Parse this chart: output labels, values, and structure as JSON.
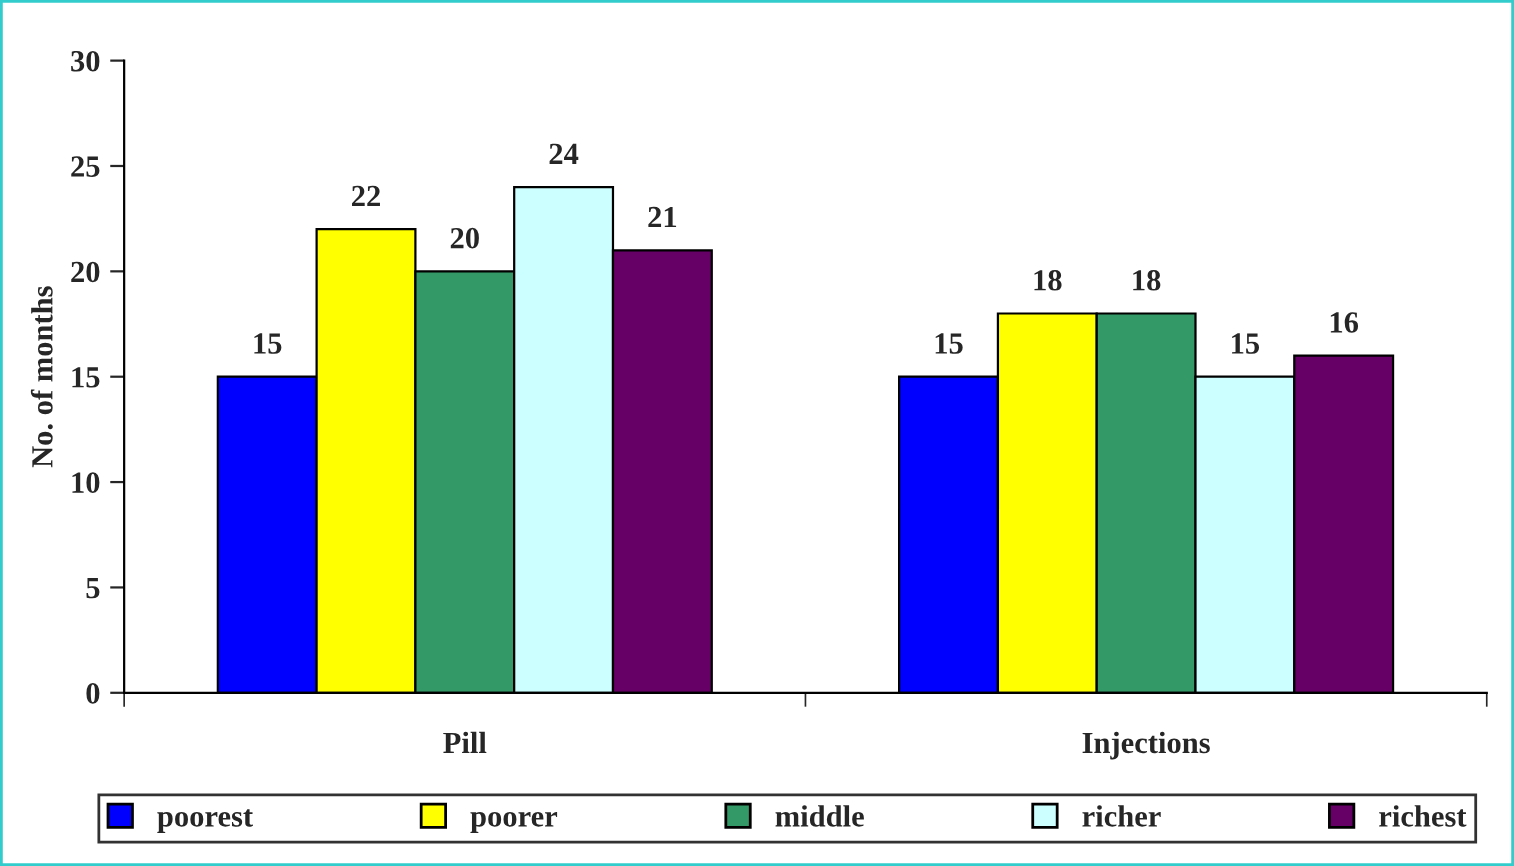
{
  "chart_data": {
    "type": "bar",
    "ylabel": "No. of months",
    "categories": [
      "Pill",
      "Injections"
    ],
    "series": [
      {
        "name": "poorest",
        "color": "#0000ff",
        "values": [
          15,
          15
        ]
      },
      {
        "name": "poorer",
        "color": "#ffff00",
        "values": [
          22,
          18
        ]
      },
      {
        "name": "middle",
        "color": "#339966",
        "values": [
          20,
          18
        ]
      },
      {
        "name": "richer",
        "color": "#ccffff",
        "values": [
          24,
          15
        ]
      },
      {
        "name": "richest",
        "color": "#660066",
        "values": [
          21,
          16
        ]
      }
    ],
    "ylim": [
      0,
      30
    ],
    "yticks": [
      0,
      5,
      10,
      15,
      20,
      25,
      30
    ],
    "data_labels": true,
    "legend": "bottom",
    "grid": false
  }
}
